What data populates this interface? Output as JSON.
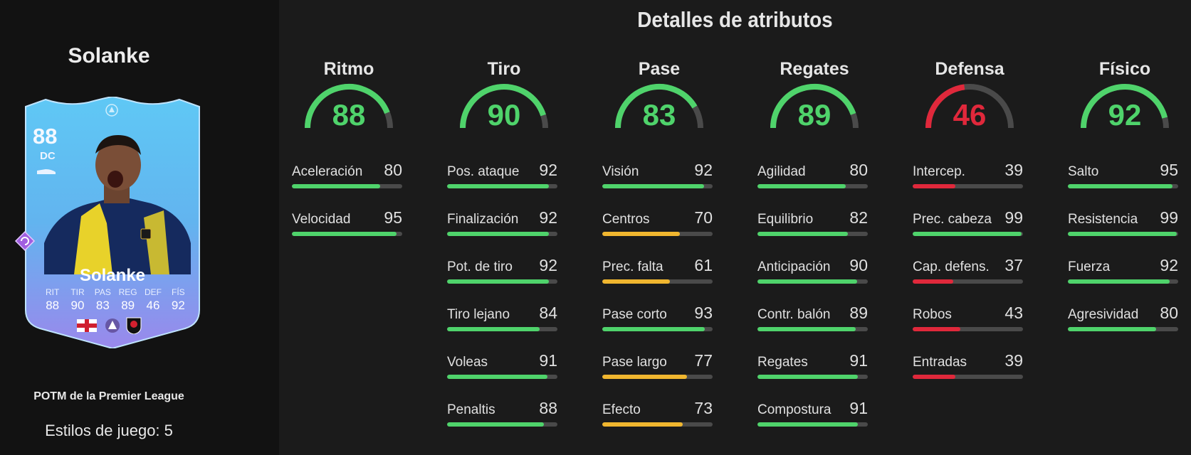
{
  "player": {
    "name": "Solanke",
    "promo": "POTM de la Premier League",
    "playstyles": "Estilos de juego: 5"
  },
  "card": {
    "rating": "88",
    "position": "DC",
    "name": "Solanke",
    "stats": [
      {
        "label": "RIT",
        "value": "88"
      },
      {
        "label": "TIR",
        "value": "90"
      },
      {
        "label": "PAS",
        "value": "83"
      },
      {
        "label": "REG",
        "value": "89"
      },
      {
        "label": "DEF",
        "value": "46"
      },
      {
        "label": "FÍS",
        "value": "92"
      }
    ],
    "icons": [
      "england-flag-icon",
      "premier-league-icon",
      "bournemouth-crest-icon"
    ]
  },
  "colors": {
    "high": "#4fd36b",
    "mid": "#f0b62f",
    "low": "#e0283b",
    "track": "#4a4a4a"
  },
  "attributes": {
    "title": "Detalles de atributos",
    "categories": [
      {
        "name": "Ritmo",
        "value": 88,
        "stats": [
          {
            "label": "Aceleración",
            "value": 80
          },
          {
            "label": "Velocidad",
            "value": 95
          }
        ]
      },
      {
        "name": "Tiro",
        "value": 90,
        "stats": [
          {
            "label": "Pos. ataque",
            "value": 92
          },
          {
            "label": "Finalización",
            "value": 92
          },
          {
            "label": "Pot. de tiro",
            "value": 92
          },
          {
            "label": "Tiro lejano",
            "value": 84
          },
          {
            "label": "Voleas",
            "value": 91
          },
          {
            "label": "Penaltis",
            "value": 88
          }
        ]
      },
      {
        "name": "Pase",
        "value": 83,
        "stats": [
          {
            "label": "Visión",
            "value": 92
          },
          {
            "label": "Centros",
            "value": 70
          },
          {
            "label": "Prec. falta",
            "value": 61
          },
          {
            "label": "Pase corto",
            "value": 93
          },
          {
            "label": "Pase largo",
            "value": 77
          },
          {
            "label": "Efecto",
            "value": 73
          }
        ]
      },
      {
        "name": "Regates",
        "value": 89,
        "stats": [
          {
            "label": "Agilidad",
            "value": 80
          },
          {
            "label": "Equilibrio",
            "value": 82
          },
          {
            "label": "Anticipación",
            "value": 90
          },
          {
            "label": "Contr. balón",
            "value": 89
          },
          {
            "label": "Regates",
            "value": 91
          },
          {
            "label": "Compostura",
            "value": 91
          }
        ]
      },
      {
        "name": "Defensa",
        "value": 46,
        "stats": [
          {
            "label": "Intercep.",
            "value": 39
          },
          {
            "label": "Prec. cabeza",
            "value": 99
          },
          {
            "label": "Cap. defens.",
            "value": 37
          },
          {
            "label": "Robos",
            "value": 43
          },
          {
            "label": "Entradas",
            "value": 39
          }
        ]
      },
      {
        "name": "Físico",
        "value": 92,
        "stats": [
          {
            "label": "Salto",
            "value": 95
          },
          {
            "label": "Resistencia",
            "value": 99
          },
          {
            "label": "Fuerza",
            "value": 92
          },
          {
            "label": "Agresividad",
            "value": 80
          }
        ]
      }
    ]
  }
}
